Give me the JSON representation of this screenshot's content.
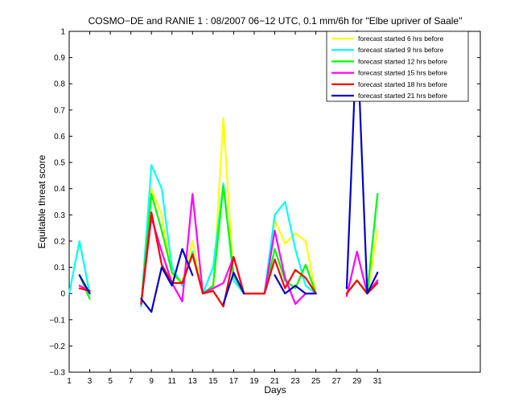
{
  "chart_data": {
    "type": "line",
    "title": "COSMO−DE and RANIE 1 : 08/2007 06−12 UTC, 0.1 mm/6h for \"Elbe upriver of Saale\"",
    "xlabel": "Days",
    "ylabel": "Equitable threat score",
    "xlim": [
      1,
      41
    ],
    "ylim": [
      -0.3,
      1
    ],
    "xticks": [
      1,
      3,
      5,
      7,
      9,
      11,
      13,
      15,
      17,
      19,
      21,
      23,
      25,
      27,
      29,
      31
    ],
    "yticks": [
      -0.3,
      -0.2,
      -0.1,
      0,
      0.1,
      0.2,
      0.3,
      0.4,
      0.5,
      0.6,
      0.7,
      0.8,
      0.9,
      1
    ],
    "ytick_labels": [
      "−0.3",
      "−0.2",
      "−0.1",
      "0",
      "0.1",
      "0.2",
      "0.3",
      "0.4",
      "0.5",
      "0.6",
      "0.7",
      "0.8",
      "0.9",
      "1"
    ],
    "grid": false,
    "legend_position": "top-right",
    "x": [
      1,
      2,
      3,
      4,
      5,
      6,
      7,
      8,
      9,
      10,
      11,
      12,
      13,
      14,
      15,
      16,
      17,
      18,
      19,
      20,
      21,
      22,
      23,
      24,
      25,
      26,
      27,
      28,
      29,
      30,
      31
    ],
    "series": [
      {
        "name": "forecast started  6 hrs before",
        "color": "#ffff00",
        "values": [
          0.0,
          0.2,
          0.0,
          null,
          null,
          null,
          null,
          -0.05,
          0.4,
          0.3,
          0.07,
          0.04,
          0.2,
          0.0,
          0.01,
          0.67,
          0.05,
          0.0,
          0.0,
          0.0,
          0.28,
          0.19,
          0.23,
          0.2,
          0.0,
          null,
          null,
          0.0,
          0.05,
          0.0,
          0.24
        ]
      },
      {
        "name": "forecast started  9 hrs before",
        "color": "#00ffff",
        "values": [
          0.0,
          0.2,
          0.0,
          null,
          null,
          null,
          null,
          -0.05,
          0.49,
          0.4,
          0.1,
          0.03,
          0.16,
          0.0,
          0.1,
          0.42,
          0.05,
          0.0,
          0.0,
          0.0,
          0.3,
          0.35,
          0.17,
          0.03,
          0.0,
          null,
          null,
          0.0,
          0.05,
          0.0,
          0.38
        ]
      },
      {
        "name": "forecast started 12 hrs before",
        "color": "#00ff00",
        "values": [
          null,
          0.07,
          -0.02,
          null,
          null,
          null,
          null,
          -0.04,
          0.38,
          0.24,
          0.08,
          0.04,
          0.15,
          0.0,
          0.03,
          0.41,
          0.07,
          0.0,
          0.0,
          0.0,
          0.17,
          0.05,
          0.02,
          0.11,
          0.0,
          null,
          null,
          0.0,
          0.05,
          0.0,
          0.38
        ]
      },
      {
        "name": "forecast started 15 hrs before",
        "color": "#ff00ff",
        "values": [
          null,
          0.03,
          0.01,
          null,
          null,
          null,
          null,
          -0.04,
          0.29,
          0.16,
          0.04,
          -0.03,
          0.38,
          0.0,
          0.02,
          0.04,
          0.14,
          0.0,
          0.0,
          0.0,
          0.24,
          0.06,
          -0.04,
          0.0,
          0.0,
          null,
          null,
          -0.01,
          0.16,
          0.0,
          0.05
        ]
      },
      {
        "name": "forecast started 18 hrs before",
        "color": "#ff0000",
        "values": [
          null,
          0.02,
          0.01,
          null,
          null,
          null,
          null,
          -0.04,
          0.31,
          0.11,
          0.04,
          0.04,
          0.15,
          0.0,
          0.01,
          -0.05,
          0.14,
          0.0,
          0.0,
          0.0,
          0.13,
          0.02,
          0.09,
          0.06,
          0.0,
          null,
          null,
          0.0,
          0.05,
          0.0,
          0.04
        ]
      },
      {
        "name": "forecast started 21 hrs before",
        "color": "#0000cc",
        "values": [
          null,
          0.07,
          0.0,
          null,
          null,
          null,
          null,
          -0.02,
          -0.07,
          0.1,
          0.03,
          0.17,
          0.07,
          null,
          null,
          -0.04,
          0.08,
          0.0,
          null,
          null,
          0.07,
          0.0,
          0.03,
          0.0,
          0.0,
          null,
          null,
          0.02,
          1.0,
          0.0,
          0.08
        ]
      }
    ]
  }
}
